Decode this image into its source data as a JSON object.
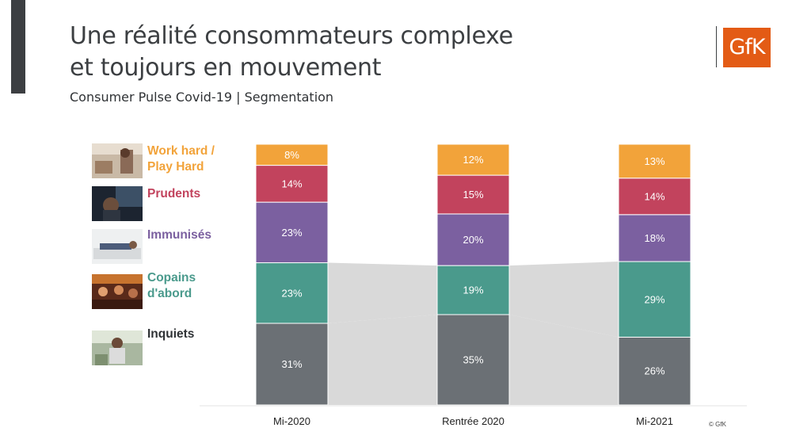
{
  "header": {
    "title_line1": "Une réalité consommateurs complexe",
    "title_line2": "et toujours en mouvement",
    "subtitle": "Consumer Pulse Covid-19 | Segmentation",
    "logo_text": "GfK",
    "copyright": "© GfK"
  },
  "legend": [
    {
      "label_line1": "Work hard /",
      "label_line2": "Play Hard",
      "color": "#f2a33a",
      "icon": "person-reading-photo"
    },
    {
      "label_line1": "Prudents",
      "label_line2": "",
      "color": "#c2435d",
      "icon": "child-at-window-photo"
    },
    {
      "label_line1": "Immunisés",
      "label_line2": "",
      "color": "#7b60a0",
      "icon": "person-on-sofa-photo"
    },
    {
      "label_line1": "Copains",
      "label_line2": "d'abord",
      "color": "#4a9a8c",
      "icon": "friends-at-bar-photo"
    },
    {
      "label_line1": "Inquiets",
      "label_line2": "",
      "color": "#2f3235",
      "icon": "worried-man-photo"
    }
  ],
  "chart_data": {
    "type": "bar",
    "stacked": true,
    "categories": [
      "Mi-2020",
      "Rentrée 2020",
      "Mi-2021"
    ],
    "series": [
      {
        "name": "Inquiets",
        "values": [
          31,
          35,
          26
        ],
        "labels": [
          "31%",
          "35%",
          "26%"
        ],
        "color": "#6b7075"
      },
      {
        "name": "Copains d'abord",
        "values": [
          23,
          19,
          29
        ],
        "labels": [
          "23%",
          "19%",
          "29%"
        ],
        "color": "#4a9a8c"
      },
      {
        "name": "Immunisés",
        "values": [
          23,
          20,
          18
        ],
        "labels": [
          "23%",
          "20%",
          "18%"
        ],
        "color": "#7b60a0"
      },
      {
        "name": "Prudents",
        "values": [
          14,
          15,
          14
        ],
        "labels": [
          "14%",
          "15%",
          "14%"
        ],
        "color": "#c2435d"
      },
      {
        "name": "Work hard / Play Hard",
        "values": [
          8,
          12,
          13
        ],
        "labels": [
          "8%",
          "12%",
          "13%"
        ],
        "color": "#f2a33a"
      }
    ],
    "connector_color": "#d9d9d9",
    "connected_series": [
      "Inquiets",
      "Copains d'abord"
    ],
    "ylim": [
      0,
      100
    ]
  }
}
